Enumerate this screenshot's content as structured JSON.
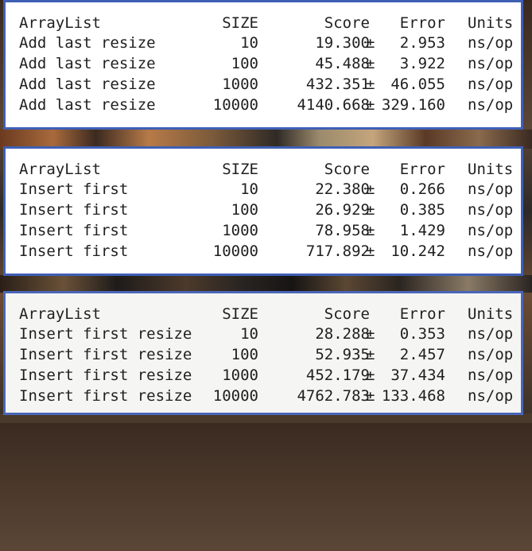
{
  "tables": [
    {
      "header": {
        "name": "ArrayList",
        "size": "SIZE",
        "score": "Score",
        "error": "Error",
        "units": "Units"
      },
      "rows": [
        {
          "name": "Add last resize",
          "size": "10",
          "score": "19.300",
          "pm": "±",
          "error": "2.953",
          "units": "ns/op"
        },
        {
          "name": "Add last resize",
          "size": "100",
          "score": "45.488",
          "pm": "±",
          "error": "3.922",
          "units": "ns/op"
        },
        {
          "name": "Add last resize",
          "size": "1000",
          "score": "432.351",
          "pm": "±",
          "error": "46.055",
          "units": "ns/op"
        },
        {
          "name": "Add last resize",
          "size": "10000",
          "score": "4140.668",
          "pm": "±",
          "error": "329.160",
          "units": "ns/op"
        }
      ]
    },
    {
      "header": {
        "name": "ArrayList",
        "size": "SIZE",
        "score": "Score",
        "error": "Error",
        "units": "Units"
      },
      "rows": [
        {
          "name": "Insert first",
          "size": "10",
          "score": "22.380",
          "pm": "±",
          "error": "0.266",
          "units": "ns/op"
        },
        {
          "name": "Insert first",
          "size": "100",
          "score": "26.929",
          "pm": "±",
          "error": "0.385",
          "units": "ns/op"
        },
        {
          "name": "Insert first",
          "size": "1000",
          "score": "78.958",
          "pm": "±",
          "error": "1.429",
          "units": "ns/op"
        },
        {
          "name": "Insert first",
          "size": "10000",
          "score": "717.892",
          "pm": "±",
          "error": "10.242",
          "units": "ns/op"
        }
      ]
    },
    {
      "header": {
        "name": "ArrayList",
        "size": "SIZE",
        "score": "Score",
        "error": "Error",
        "units": "Units"
      },
      "rows": [
        {
          "name": "Insert first resize",
          "size": "10",
          "score": "28.288",
          "pm": "±",
          "error": "0.353",
          "units": "ns/op"
        },
        {
          "name": "Insert first resize",
          "size": "100",
          "score": "52.935",
          "pm": "±",
          "error": "2.457",
          "units": "ns/op"
        },
        {
          "name": "Insert first resize",
          "size": "1000",
          "score": "452.179",
          "pm": "±",
          "error": "37.434",
          "units": "ns/op"
        },
        {
          "name": "Insert first resize",
          "size": "10000",
          "score": "4762.783",
          "pm": "±",
          "error": "133.468",
          "units": "ns/op"
        }
      ]
    }
  ]
}
